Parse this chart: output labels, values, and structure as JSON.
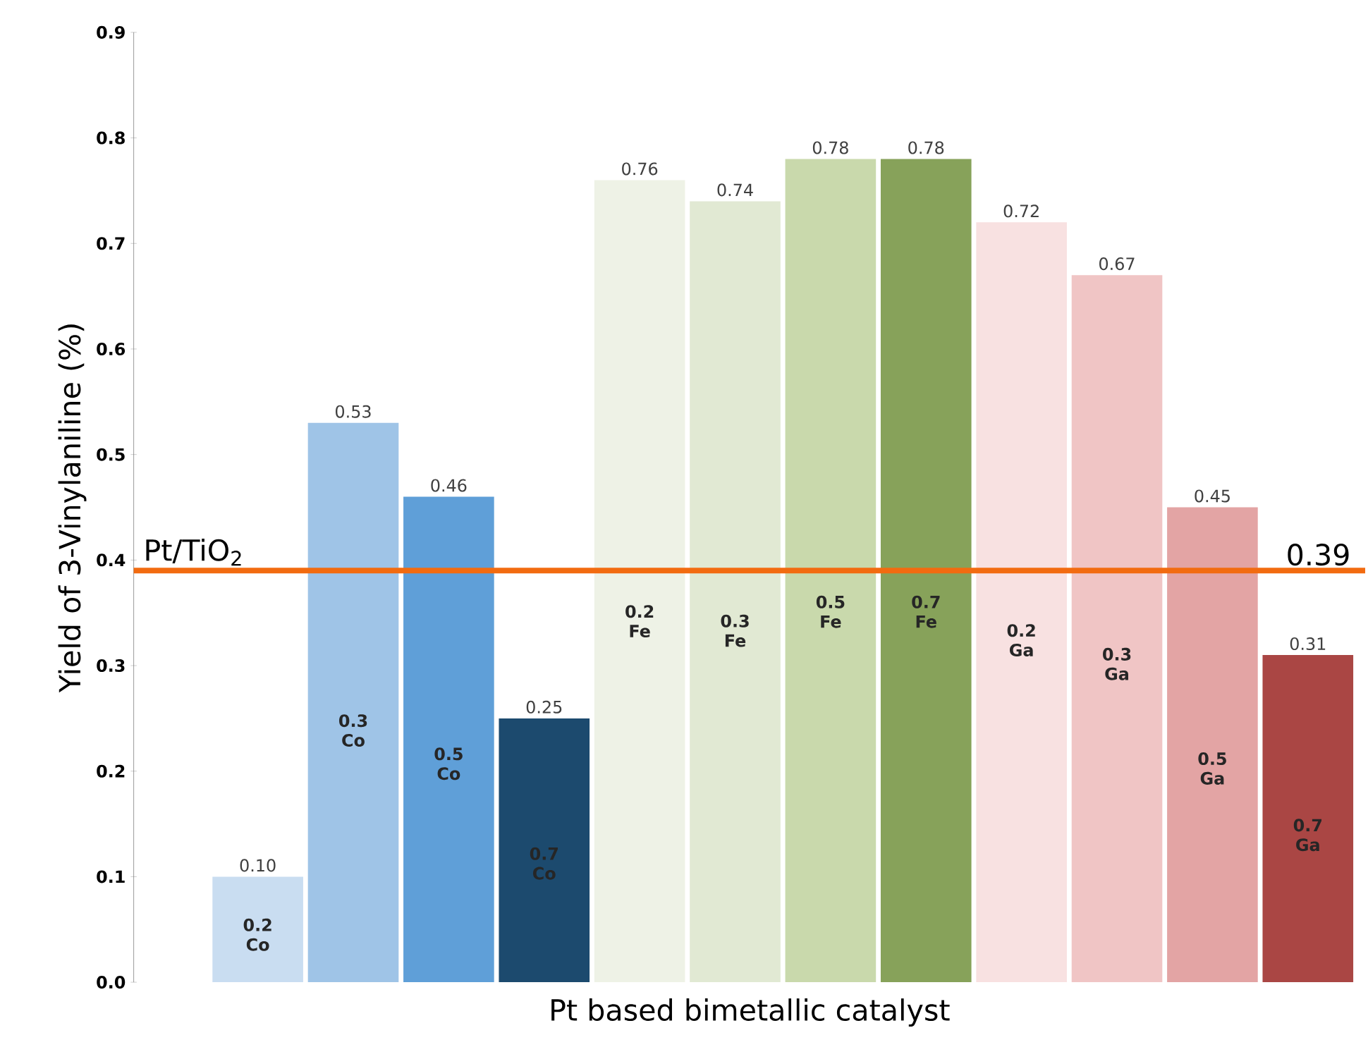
{
  "chart_data": {
    "type": "bar",
    "xlabel": "Pt based bimetallic catalyst",
    "ylabel": "Yield of 3-Vinylaniline (%)",
    "categories": [
      "0.2 Co",
      "0.3 Co",
      "0.5 Co",
      "0.7 Co",
      "0.2 Fe",
      "0.3 Fe",
      "0.5 Fe",
      "0.7 Fe",
      "0.2 Ga",
      "0.3 Ga",
      "0.5 Ga",
      "0.7 Ga"
    ],
    "values": [
      0.1,
      0.53,
      0.46,
      0.25,
      0.76,
      0.74,
      0.78,
      0.78,
      0.72,
      0.67,
      0.45,
      0.31
    ],
    "value_labels": [
      "0.10",
      "0.53",
      "0.46",
      "0.25",
      "0.76",
      "0.74",
      "0.78",
      "0.78",
      "0.72",
      "0.67",
      "0.45",
      "0.31"
    ],
    "colors": [
      "#c9ddf1",
      "#9fc4e7",
      "#5f9fd8",
      "#1c4a6e",
      "#eef2e6",
      "#e1e9d3",
      "#c9d9ac",
      "#87a25a",
      "#f8e1e1",
      "#f0c5c5",
      "#e3a4a4",
      "#aa4644"
    ],
    "ylim": [
      0,
      0.9
    ],
    "yticks": [
      {
        "value": 0,
        "label": "0.0"
      },
      0.1,
      0.2,
      0.3,
      0.4,
      0.5,
      0.6,
      0.7,
      0.8,
      0.9
    ],
    "ref_lines": [
      {
        "axis": "y",
        "value": 0.39,
        "label": "Pt/TiO$_{2}$",
        "color": "#f26b10"
      }
    ],
    "annotations": [
      "0.39"
    ],
    "grid": false
  }
}
